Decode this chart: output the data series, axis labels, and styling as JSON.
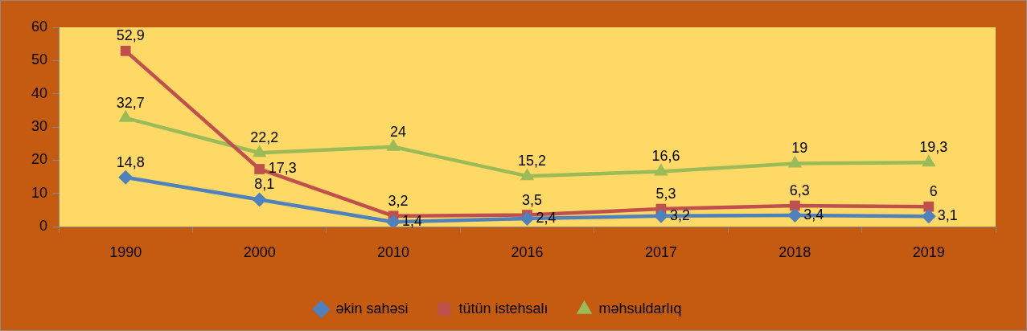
{
  "chart_data": {
    "type": "line",
    "categories": [
      "1990",
      "2000",
      "2010",
      "2016",
      "2017",
      "2018",
      "2019"
    ],
    "series": [
      {
        "name": "əkin sahəsi",
        "color": "#4f81bd",
        "marker": "diamond",
        "values": [
          14.8,
          8.1,
          1.4,
          2.4,
          3.2,
          3.4,
          3.1
        ],
        "value_labels": [
          "14,8",
          "8,1",
          "1,4",
          "2,4",
          "3,2",
          "3,4",
          "3,1"
        ]
      },
      {
        "name": "tütün istehsalı",
        "color": "#c0504d",
        "marker": "square",
        "values": [
          52.9,
          17.3,
          3.2,
          3.5,
          5.3,
          6.3,
          6
        ],
        "value_labels": [
          "52,9",
          "17,3",
          "3,2",
          "3,5",
          "5,3",
          "6,3",
          "6"
        ]
      },
      {
        "name": "məhsuldarlıq",
        "color": "#9bbb59",
        "marker": "triangle",
        "values": [
          32.7,
          22.2,
          24,
          15.2,
          16.6,
          19,
          19.3
        ],
        "value_labels": [
          "32,7",
          "22,2",
          "24",
          "15,2",
          "16,6",
          "19",
          "19,3"
        ]
      }
    ],
    "ylim": [
      0,
      60
    ],
    "yticks": [
      0,
      10,
      20,
      30,
      40,
      50,
      60
    ],
    "legend": "bottom",
    "line_style": "solid"
  }
}
